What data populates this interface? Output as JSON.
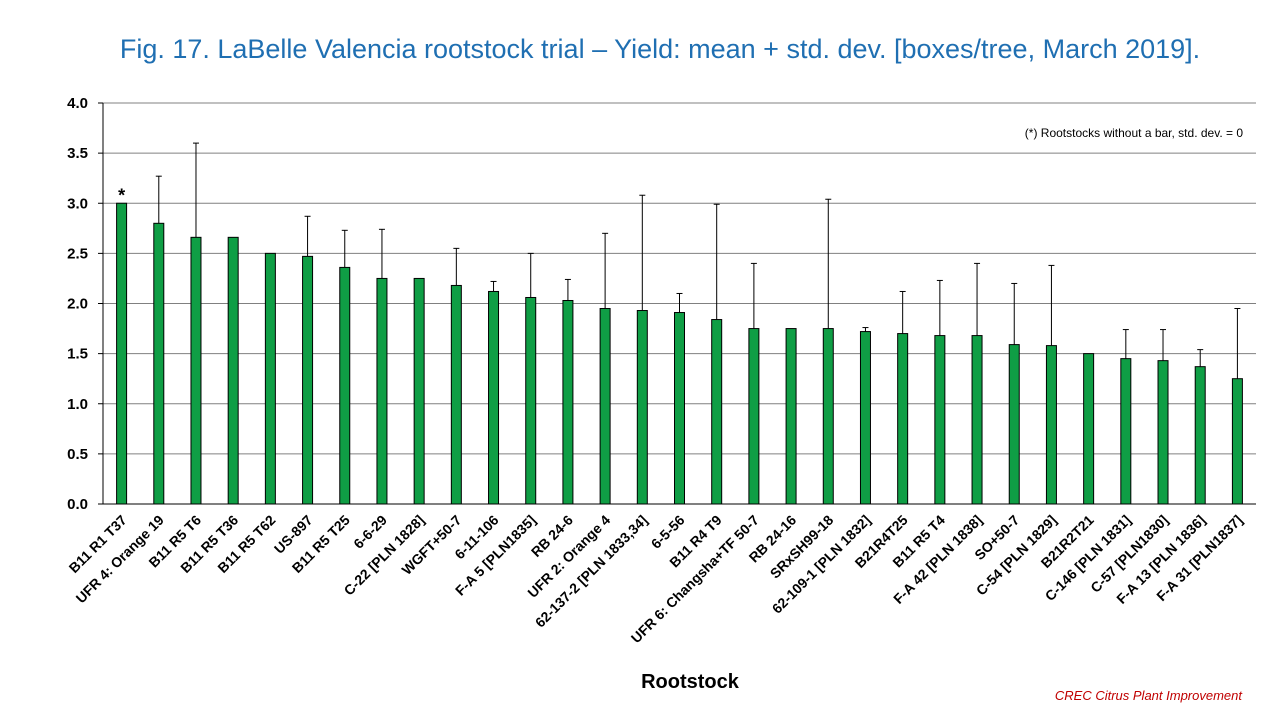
{
  "chart_data": {
    "type": "bar",
    "title": "Fig. 17. LaBelle Valencia rootstock trial – Yield: mean + std. dev. [boxes/tree, March 2019].",
    "xlabel": "Rootstock",
    "ylabel": "",
    "ylim": [
      0,
      4.0
    ],
    "yticks": [
      "0.0",
      "0.5",
      "1.0",
      "1.5",
      "2.0",
      "2.5",
      "3.0",
      "3.5",
      "4.0"
    ],
    "grid": true,
    "bar_color": "#0f9e45",
    "note": "(*) Rootstocks without  a bar, std. dev. = 0",
    "marker": "*",
    "marker_index": 0,
    "categories": [
      "B11 R1 T37",
      "UFR 4: Orange 19",
      "B11 R5 T6",
      "B11 R5 T36",
      "B11 R5 T62",
      "US-897",
      "B11 R5 T25",
      "6-6-29",
      "C-22 [PLN 1828]",
      "WGFT+50-7",
      "6-11-106",
      "F-A 5 [PLN1835]",
      "RB 24-6",
      "UFR 2: Orange 4",
      "62-137-2 [PLN 1833,34]",
      "6-5-56",
      "B11 R4 T9",
      "UFR 6: Changsha+TF 50-7",
      "RB 24-16",
      "SRxSH99-18",
      "62-109-1 [PLN 1832]",
      "B21R4T25",
      "B11 R5 T4",
      "F-A 42 [PLN 1838]",
      "SO+50-7",
      "C-54 [PLN 1829]",
      "B21R2T21",
      "C-146 [PLN 1831]",
      "C-57 [PLN1830]",
      "F-A 13 [PLN 1836]",
      "F-A 31 [PLN1837]"
    ],
    "values": [
      3.0,
      2.8,
      2.66,
      2.66,
      2.5,
      2.47,
      2.36,
      2.25,
      2.25,
      2.18,
      2.12,
      2.06,
      2.03,
      1.95,
      1.93,
      1.91,
      1.84,
      1.75,
      1.75,
      1.75,
      1.72,
      1.7,
      1.68,
      1.68,
      1.59,
      1.58,
      1.5,
      1.45,
      1.43,
      1.37,
      1.25
    ],
    "std_dev": [
      0,
      0.47,
      0.94,
      0,
      0,
      0.4,
      0.37,
      0.49,
      0,
      0.37,
      0.1,
      0.44,
      0.21,
      0.75,
      1.15,
      0.19,
      1.15,
      0.65,
      0,
      1.29,
      0.04,
      0.42,
      0.55,
      0.72,
      0.61,
      0.8,
      0,
      0.29,
      0.31,
      0.17,
      0.7
    ]
  },
  "footer": "CREC Citrus Plant Improvement"
}
